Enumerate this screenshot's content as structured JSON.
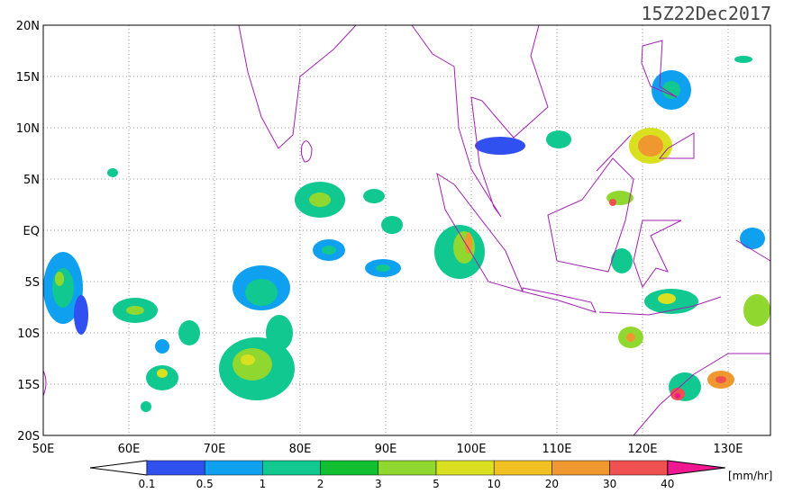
{
  "header": {
    "timestamp": "15Z22Dec2017"
  },
  "map": {
    "lat_labels": [
      "20N",
      "15N",
      "10N",
      "5N",
      "EQ",
      "5S",
      "10S",
      "15S",
      "20S"
    ],
    "lon_labels": [
      "50E",
      "60E",
      "70E",
      "80E",
      "90E",
      "100E",
      "110E",
      "120E",
      "130E"
    ]
  },
  "colorbar": {
    "labels": [
      "0.1",
      "0.5",
      "1",
      "2",
      "3",
      "5",
      "10",
      "20",
      "30",
      "40"
    ],
    "unit": "[mm/hr]"
  }
}
